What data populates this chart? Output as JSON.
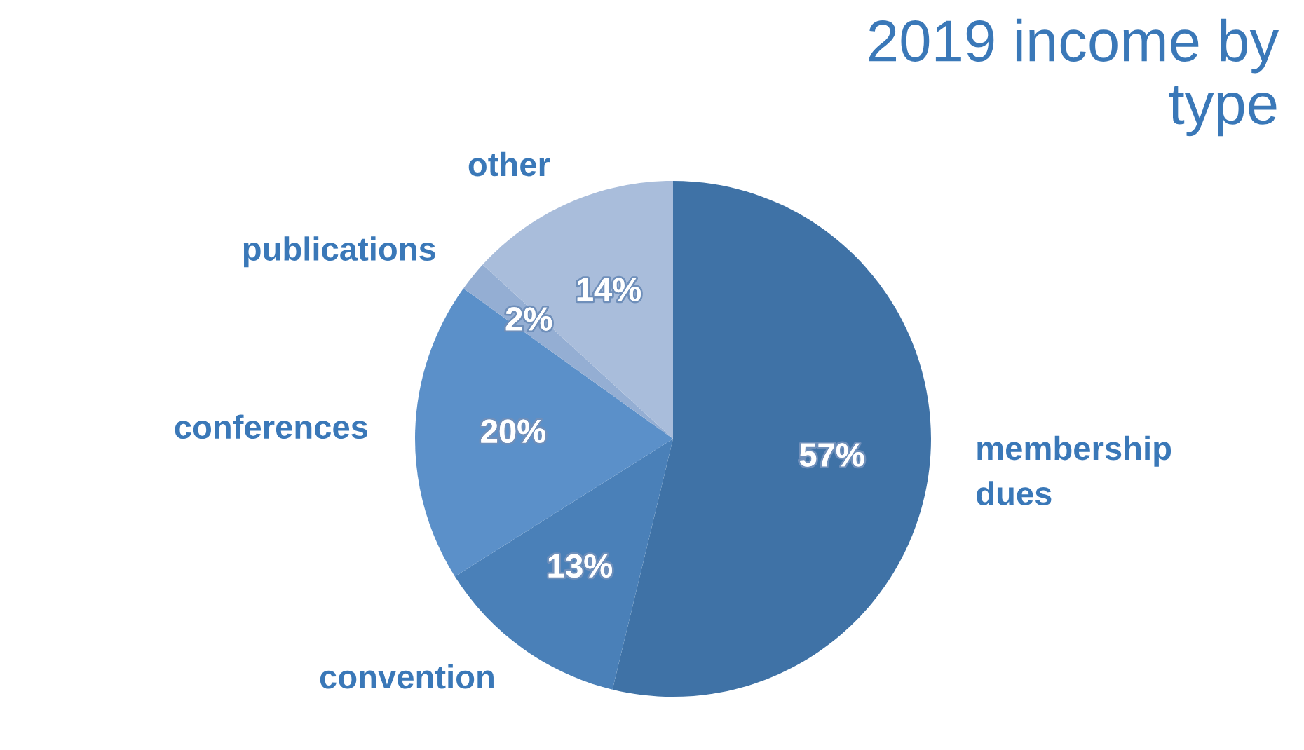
{
  "chart_data": {
    "type": "pie",
    "title": "2019 income by type",
    "categories": [
      "membership dues",
      "convention",
      "conferences",
      "publications",
      "other"
    ],
    "values": [
      57,
      13,
      20,
      2,
      14
    ],
    "colors": [
      "#3f72a6",
      "#4a80b8",
      "#5b90c9",
      "#94aed3",
      "#a9bddb"
    ],
    "value_labels": [
      "57%",
      "13%",
      "20%",
      "2%",
      "14%"
    ]
  }
}
